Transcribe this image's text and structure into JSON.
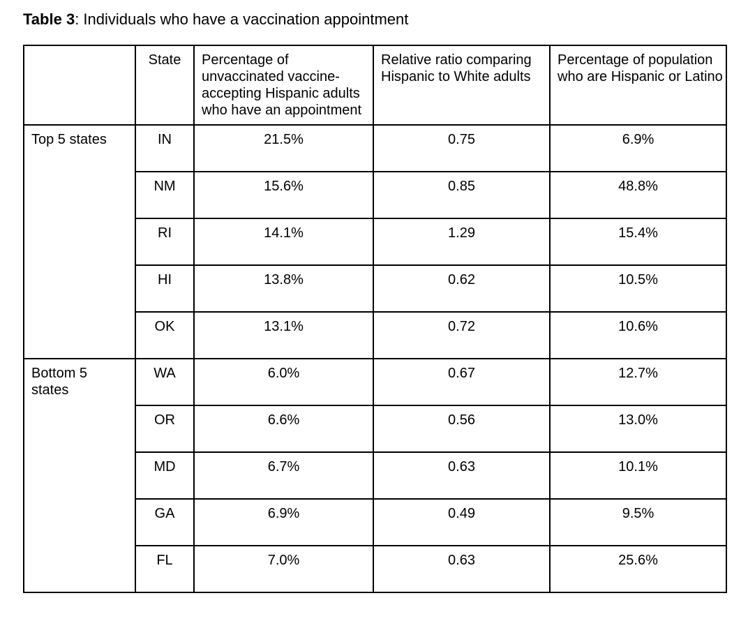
{
  "page": {
    "title_bold": "Table 3",
    "title_rest": ": Individuals who have a vaccination appointment"
  },
  "table": {
    "headers": {
      "group": "",
      "state": "State",
      "pct_appointment": "Percentage of\nunvaccinated vaccine-\naccepting Hispanic adults\nwho have an appointment",
      "relative_ratio": "Relative ratio comparing\nHispanic to White adults",
      "pct_population": "Percentage of population\nwho are Hispanic or Latino"
    },
    "groups": [
      {
        "label": "Top 5 states",
        "rows": [
          {
            "state": "IN",
            "pct_appointment": "21.5%",
            "relative_ratio": "0.75",
            "pct_population": "6.9%"
          },
          {
            "state": "NM",
            "pct_appointment": "15.6%",
            "relative_ratio": "0.85",
            "pct_population": "48.8%"
          },
          {
            "state": "RI",
            "pct_appointment": "14.1%",
            "relative_ratio": "1.29",
            "pct_population": "15.4%"
          },
          {
            "state": "HI",
            "pct_appointment": "13.8%",
            "relative_ratio": "0.62",
            "pct_population": "10.5%"
          },
          {
            "state": "OK",
            "pct_appointment": "13.1%",
            "relative_ratio": "0.72",
            "pct_population": "10.6%"
          }
        ]
      },
      {
        "label": "Bottom 5 states",
        "rows": [
          {
            "state": "WA",
            "pct_appointment": "6.0%",
            "relative_ratio": "0.67",
            "pct_population": "12.7%"
          },
          {
            "state": "OR",
            "pct_appointment": "6.6%",
            "relative_ratio": "0.56",
            "pct_population": "13.0%"
          },
          {
            "state": "MD",
            "pct_appointment": "6.7%",
            "relative_ratio": "0.63",
            "pct_population": "10.1%"
          },
          {
            "state": "GA",
            "pct_appointment": "6.9%",
            "relative_ratio": "0.49",
            "pct_population": "9.5%"
          },
          {
            "state": "FL",
            "pct_appointment": "7.0%",
            "relative_ratio": "0.63",
            "pct_population": "25.6%"
          }
        ]
      }
    ]
  }
}
